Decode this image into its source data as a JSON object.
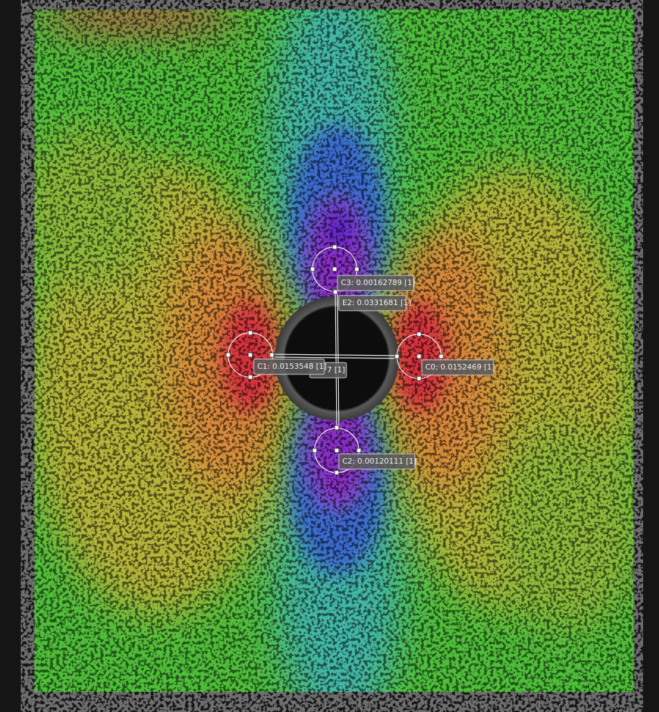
{
  "annotations": [
    {
      "label": "C3: 0.00162789 [1]"
    },
    {
      "label": "E2: 0.0331681 [1]"
    },
    {
      "label": "7 [1]"
    },
    {
      "label": "C1: 0.0153548 [1]"
    },
    {
      "label": "C0: 0.0152469 [1]"
    },
    {
      "label": "C2: 0.00120111 [1]"
    }
  ]
}
